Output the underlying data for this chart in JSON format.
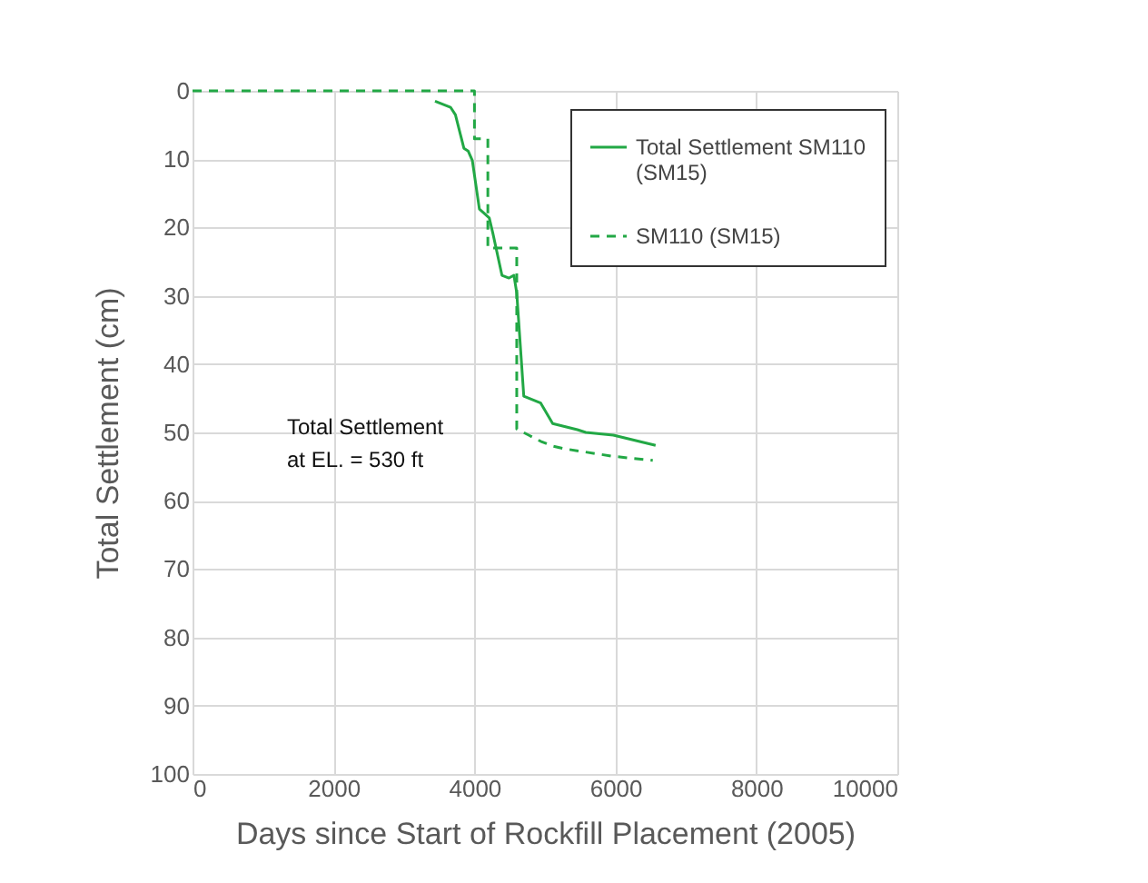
{
  "chart_data": {
    "type": "line",
    "xlabel": "Days since Start of Rockfill Placement (2005)",
    "ylabel": "Total Settlement (cm)",
    "xlim": [
      0,
      10000
    ],
    "xticks": [
      0,
      2000,
      4000,
      6000,
      8000,
      10000
    ],
    "ylim": [
      100,
      0
    ],
    "yticks": [
      0,
      10,
      20,
      30,
      40,
      50,
      60,
      70,
      80,
      90,
      100
    ],
    "grid": true,
    "legend": "top right",
    "marker": "none",
    "annotations": [
      "Total Settlement at EL. = 530 ft"
    ],
    "series": [
      {
        "name": "Total Settlement SM110 (SM15)",
        "color": "#22a845",
        "line_style": "solid",
        "x": [
          3440,
          3660,
          3730,
          3850,
          3910,
          3970,
          4070,
          4210,
          4260,
          4390,
          4490,
          4560,
          4600,
          4700,
          4940,
          5110,
          5460,
          5580,
          5970,
          6570
        ],
        "values": [
          1.5,
          2.4,
          3.5,
          8.4,
          8.8,
          10.2,
          17.3,
          18.6,
          20.8,
          27,
          27.4,
          27,
          29.6,
          44.7,
          45.7,
          48.7,
          49.6,
          50,
          50.4,
          51.9
        ]
      },
      {
        "name": "SM110 (SM15)",
        "color": "#22a845",
        "line_style": "dashed",
        "x": [
          0,
          4000,
          4000,
          4190,
          4190,
          4600,
          4600,
          4770,
          4940,
          5110,
          5280,
          5970,
          6530
        ],
        "values": [
          0,
          0,
          7,
          7,
          23,
          23,
          49.5,
          50.4,
          51.3,
          52,
          52.4,
          53.5,
          54.1
        ]
      }
    ]
  }
}
